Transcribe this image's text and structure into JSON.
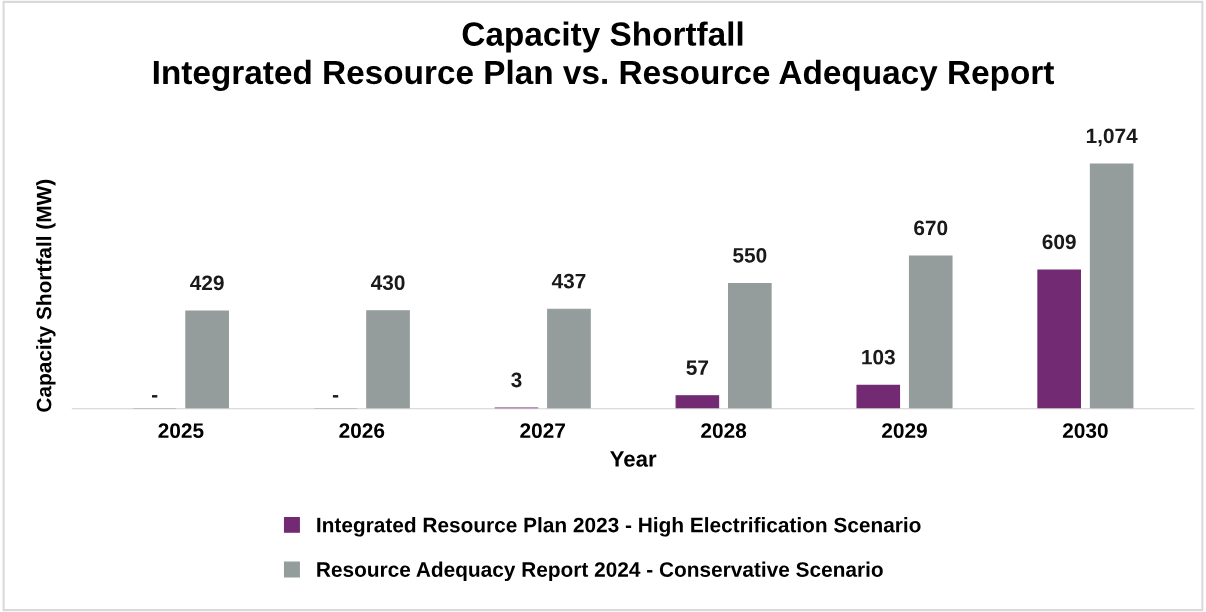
{
  "chart_data": {
    "type": "bar",
    "title": "Capacity Shortfall\nIntegrated Resource Plan vs. Resource Adequacy Report",
    "xlabel": "Year",
    "ylabel": "Capacity Shortfall (MW)",
    "categories": [
      "2025",
      "2026",
      "2027",
      "2028",
      "2029",
      "2030"
    ],
    "series": [
      {
        "name": "Integrated Resource Plan 2023 - High Electrification Scenario",
        "color": "#722a73",
        "values": [
          0,
          0,
          3,
          57,
          103,
          609
        ],
        "value_labels": [
          "-",
          "-",
          "3",
          "57",
          "103",
          "609"
        ]
      },
      {
        "name": "Resource Adequacy Report 2024 - Conservative Scenario",
        "color": "#949d9c",
        "values": [
          429,
          430,
          437,
          550,
          670,
          1074
        ],
        "value_labels": [
          "429",
          "430",
          "437",
          "550",
          "670",
          "1,074"
        ]
      }
    ],
    "legend": "bottom",
    "grid": false,
    "tick_labels": "x"
  }
}
